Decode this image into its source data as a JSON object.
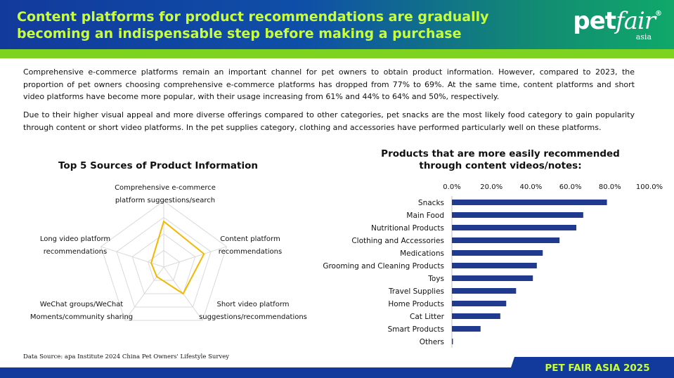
{
  "header": {
    "title": "Content platforms for product recommendations are gradually becoming an indispensable step before making a purchase",
    "logo_main": "pet",
    "logo_italic": "fair",
    "logo_sub": "asia",
    "logo_reg": "®"
  },
  "body": {
    "paragraph1": "Comprehensive e-commerce platforms remain an important channel for pet owners to obtain product information. However, compared to 2023, the proportion of pet owners choosing comprehensive e-commerce platforms has dropped from 77% to 69%. At the same time, content platforms and short video platforms have become more popular, with their usage increasing from 61% and 44% to 64% and 50%, respectively.",
    "paragraph2": "Due to their higher visual appeal and more diverse offerings compared to other categories, pet snacks are the most likely food category to gain popularity through content or short video platforms. In the pet supplies category, clothing and accessories have performed particularly well on these platforms."
  },
  "source": "Data Source: apa Institute 2024 China Pet Owners' Lifestyle Survey",
  "footer": "PET FAIR ASIA 2025",
  "colors": {
    "header_title": "#c8ff3a",
    "accent_green": "#7ed321",
    "navy": "#123a9c",
    "radar_line": "#f2b800",
    "bar": "#1f3a8f"
  },
  "chart_data": [
    {
      "type": "radar",
      "title": "Top 5 Sources of Product Information",
      "axes": [
        "Comprehensive e-commerce platform suggestions/search",
        "Content platform recommendations",
        "Short video platform suggestions/recommendations",
        "WeChat groups/WeChat Moments/community sharing",
        "Long video platform recommendations"
      ],
      "series": [
        {
          "values": [
            69,
            64,
            50,
            18,
            20
          ]
        }
      ],
      "range": [
        0,
        100
      ],
      "grid_rings": 4
    },
    {
      "type": "bar",
      "orientation": "horizontal",
      "title": "Products that are more easily recommended through content videos/notes:",
      "categories": [
        "Snacks",
        "Main Food",
        "Nutritional Products",
        "Clothing and Accessories",
        "Medications",
        "Grooming and Cleaning Products",
        "Toys",
        "Travel Supplies",
        "Home Products",
        "Cat Litter",
        "Smart Products",
        "Others"
      ],
      "values": [
        78.5,
        66.5,
        63,
        54.5,
        46,
        43,
        41,
        32.5,
        27.5,
        24.5,
        14.5,
        0.5
      ],
      "xlim": [
        0,
        100
      ],
      "ticks": [
        "0.0%",
        "20.0%",
        "40.0%",
        "60.0%",
        "80.0%",
        "100.0%"
      ],
      "tick_values": [
        0,
        20,
        40,
        60,
        80,
        100
      ],
      "axis_position": "top"
    }
  ]
}
